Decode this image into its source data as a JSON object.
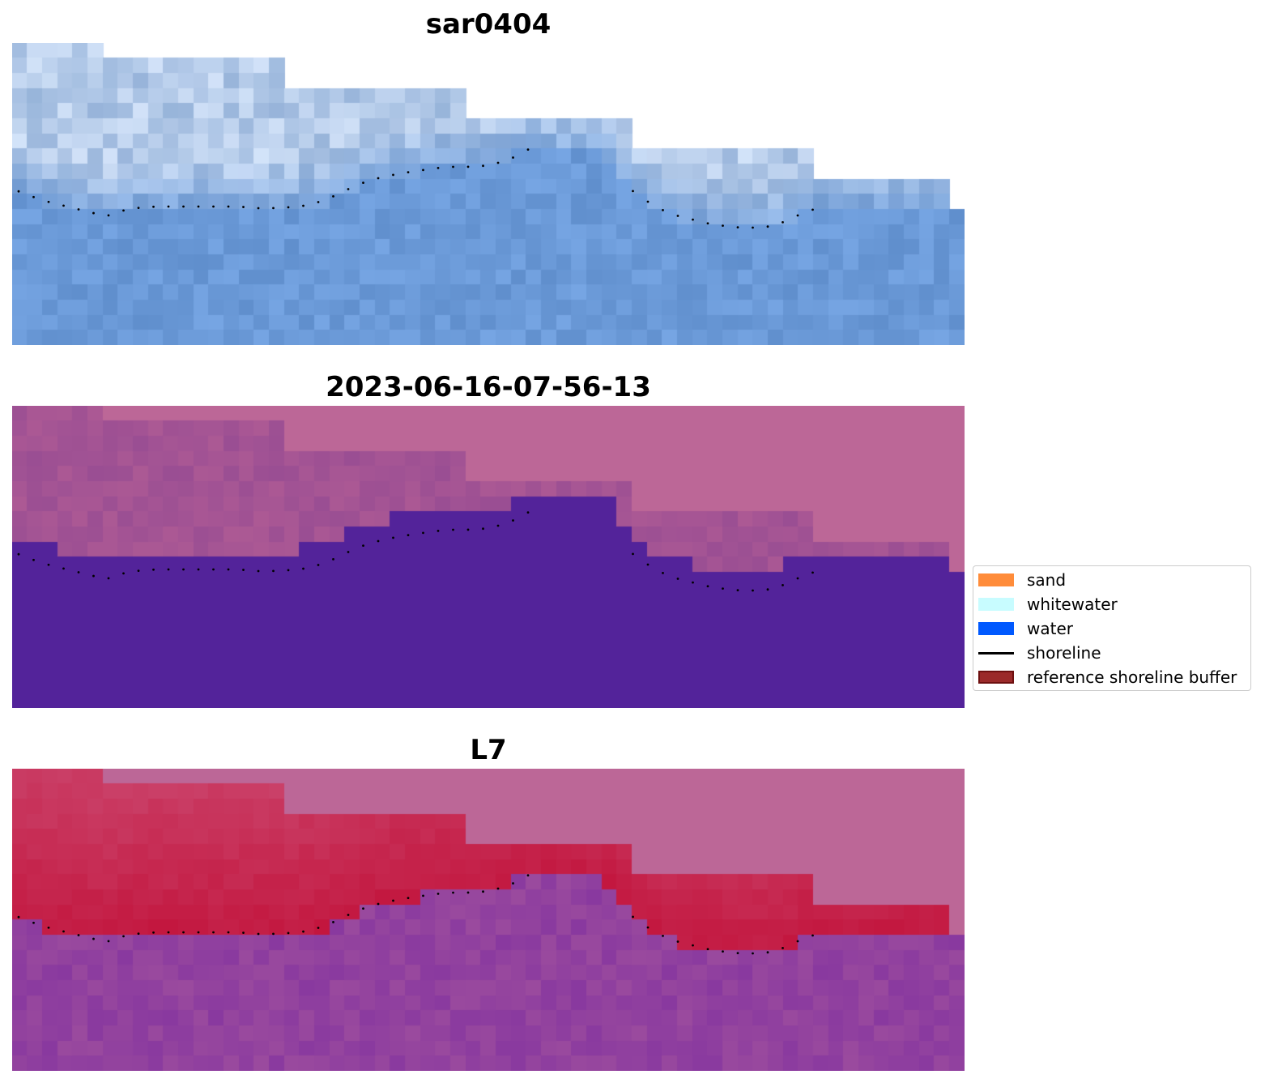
{
  "panels": [
    {
      "title": "sar0404",
      "style": "sar"
    },
    {
      "title": "2023-06-16-07-56-13",
      "style": "class"
    },
    {
      "title": "L7",
      "style": "prob"
    }
  ],
  "legend": {
    "items": [
      {
        "label": "sand",
        "color": "#ff8c3a",
        "kind": "patch"
      },
      {
        "label": "whitewater",
        "color": "#c8fcff",
        "kind": "patch"
      },
      {
        "label": "water",
        "color": "#0059ff",
        "kind": "patch"
      },
      {
        "label": "shoreline",
        "color": "#000000",
        "kind": "line"
      },
      {
        "label": "reference shoreline buffer",
        "color": "#9b2a2a",
        "edge": "#6e1010",
        "kind": "patch"
      }
    ]
  },
  "colors": {
    "nodata": "#bc6797",
    "water_class": "#53239a",
    "land_class": "#9a4e93",
    "sar_base": "#6b9ad8",
    "sar_land": "#c8d8ee",
    "prob_high": "#c2123a",
    "prob_low": "#9a4a9e"
  }
}
